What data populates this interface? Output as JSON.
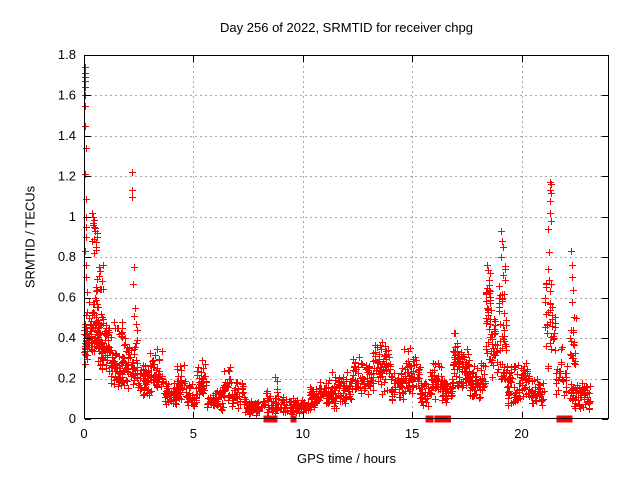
{
  "chart_data": {
    "type": "scatter",
    "title": "Day 256 of 2022, SRMTID for receiver chpg",
    "xlabel": "GPS time / hours",
    "ylabel": "SRMTID / TECUs",
    "xlim": [
      0,
      24
    ],
    "ylim": [
      0,
      1.8
    ],
    "xticks": [
      0,
      5,
      10,
      15,
      20
    ],
    "yticks": [
      0,
      0.2,
      0.4,
      0.6,
      0.8,
      1,
      1.2,
      1.4,
      1.6,
      1.8
    ],
    "grid": true,
    "legend_position": "none",
    "marker": "plus",
    "marker_color": "#ff0000",
    "background_color": "#ffffff",
    "axis_color": "#000000",
    "grid_color": "#a8a8a8",
    "seed": 1337,
    "bands": [
      [
        0.0,
        0.18,
        0.25,
        0.58,
        0.45,
        30
      ],
      [
        0.05,
        0.35,
        0.3,
        0.5,
        0.4,
        22
      ],
      [
        0.2,
        0.7,
        0.3,
        0.68,
        0.45,
        55
      ],
      [
        0.35,
        0.6,
        0.8,
        1.02,
        0.5,
        9
      ],
      [
        0.5,
        0.9,
        0.55,
        0.78,
        0.4,
        13
      ],
      [
        0.6,
        1.25,
        0.22,
        0.52,
        0.45,
        80
      ],
      [
        1.2,
        1.8,
        0.15,
        0.35,
        0.45,
        55
      ],
      [
        1.35,
        1.75,
        0.38,
        0.52,
        0.5,
        12
      ],
      [
        1.8,
        2.45,
        0.14,
        0.44,
        0.4,
        55
      ],
      [
        2.45,
        2.95,
        0.1,
        0.3,
        0.4,
        42
      ],
      [
        2.95,
        3.6,
        0.1,
        0.35,
        0.4,
        52
      ],
      [
        3.6,
        4.25,
        0.06,
        0.2,
        0.4,
        48
      ],
      [
        4.25,
        4.7,
        0.08,
        0.28,
        0.4,
        34
      ],
      [
        4.7,
        5.15,
        0.05,
        0.18,
        0.4,
        32
      ],
      [
        5.15,
        5.6,
        0.08,
        0.3,
        0.4,
        34
      ],
      [
        5.6,
        6.35,
        0.04,
        0.15,
        0.4,
        50
      ],
      [
        6.35,
        6.75,
        0.08,
        0.28,
        0.45,
        30
      ],
      [
        6.75,
        7.35,
        0.05,
        0.2,
        0.4,
        40
      ],
      [
        7.35,
        8.25,
        0.02,
        0.11,
        0.4,
        50
      ],
      [
        8.25,
        9.0,
        0.02,
        0.17,
        0.35,
        40
      ],
      [
        9.0,
        9.6,
        0.02,
        0.12,
        0.4,
        30
      ],
      [
        9.6,
        10.25,
        0.02,
        0.1,
        0.45,
        42
      ],
      [
        10.25,
        10.95,
        0.04,
        0.2,
        0.45,
        48
      ],
      [
        10.95,
        11.6,
        0.05,
        0.24,
        0.4,
        45
      ],
      [
        11.6,
        12.2,
        0.06,
        0.26,
        0.45,
        48
      ],
      [
        12.2,
        13.15,
        0.1,
        0.32,
        0.45,
        60
      ],
      [
        13.15,
        14.0,
        0.12,
        0.4,
        0.45,
        65
      ],
      [
        14.0,
        14.6,
        0.08,
        0.28,
        0.4,
        45
      ],
      [
        14.6,
        15.35,
        0.12,
        0.37,
        0.45,
        55
      ],
      [
        15.35,
        15.8,
        0.05,
        0.22,
        0.4,
        30
      ],
      [
        15.8,
        16.35,
        0.08,
        0.33,
        0.45,
        40
      ],
      [
        16.35,
        16.85,
        0.07,
        0.22,
        0.4,
        35
      ],
      [
        16.85,
        17.25,
        0.15,
        0.47,
        0.4,
        40
      ],
      [
        17.25,
        17.65,
        0.13,
        0.35,
        0.45,
        40
      ],
      [
        17.65,
        18.1,
        0.08,
        0.28,
        0.4,
        35
      ],
      [
        18.1,
        18.35,
        0.12,
        0.3,
        0.4,
        18
      ],
      [
        18.35,
        18.62,
        0.25,
        0.8,
        0.55,
        40
      ],
      [
        18.62,
        18.95,
        0.15,
        0.55,
        0.45,
        25
      ],
      [
        18.95,
        19.3,
        0.3,
        0.8,
        0.35,
        30
      ],
      [
        18.95,
        19.35,
        0.15,
        0.35,
        0.4,
        15
      ],
      [
        19.3,
        19.95,
        0.06,
        0.28,
        0.35,
        45
      ],
      [
        19.95,
        20.35,
        0.1,
        0.32,
        0.45,
        30
      ],
      [
        20.35,
        21.05,
        0.05,
        0.22,
        0.4,
        40
      ],
      [
        21.05,
        21.55,
        0.2,
        0.95,
        0.35,
        42
      ],
      [
        21.55,
        22.1,
        0.1,
        0.36,
        0.4,
        26
      ],
      [
        22.15,
        22.5,
        0.2,
        0.6,
        0.4,
        18
      ],
      [
        22.2,
        23.15,
        0.04,
        0.19,
        0.45,
        60
      ]
    ],
    "highlight_points": [
      [
        0.03,
        1.74
      ],
      [
        0.05,
        1.71
      ],
      [
        0.04,
        1.69
      ],
      [
        0.06,
        1.67
      ],
      [
        0.05,
        1.64
      ],
      [
        0.04,
        1.6
      ],
      [
        0.06,
        1.55
      ],
      [
        0.05,
        1.45
      ],
      [
        0.07,
        1.34
      ],
      [
        0.05,
        1.21
      ],
      [
        0.07,
        1.09
      ],
      [
        0.09,
        1.0
      ],
      [
        0.07,
        0.95
      ],
      [
        0.1,
        0.9
      ],
      [
        0.06,
        0.83
      ],
      [
        0.11,
        0.76
      ],
      [
        0.08,
        0.7
      ],
      [
        0.12,
        0.63
      ],
      [
        0.38,
        1.02
      ],
      [
        0.43,
        1.0
      ],
      [
        0.4,
        0.97
      ],
      [
        0.46,
        0.95
      ],
      [
        0.5,
        0.93
      ],
      [
        0.36,
        0.88
      ],
      [
        0.53,
        0.85
      ],
      [
        0.44,
        0.82
      ],
      [
        2.18,
        1.22
      ],
      [
        2.21,
        1.13
      ],
      [
        2.19,
        1.1
      ],
      [
        2.28,
        0.75
      ],
      [
        2.24,
        0.67
      ],
      [
        2.31,
        0.55
      ],
      [
        2.29,
        0.51
      ],
      [
        2.36,
        0.47
      ],
      [
        2.41,
        0.44
      ],
      [
        8.75,
        0.21
      ],
      [
        8.8,
        0.19
      ],
      [
        19.05,
        0.93
      ],
      [
        19.1,
        0.88
      ],
      [
        19.16,
        0.85
      ],
      [
        19.08,
        0.8
      ],
      [
        21.28,
        1.17
      ],
      [
        21.33,
        1.16
      ],
      [
        21.3,
        1.13
      ],
      [
        21.36,
        1.12
      ],
      [
        21.31,
        1.08
      ],
      [
        21.29,
        1.02
      ],
      [
        21.34,
        0.98
      ],
      [
        22.28,
        0.83
      ],
      [
        22.33,
        0.76
      ],
      [
        22.29,
        0.7
      ],
      [
        22.35,
        0.64
      ],
      [
        22.31,
        0.58
      ]
    ],
    "zero_runs": [
      [
        8.3,
        8.48
      ],
      [
        8.58,
        8.76
      ],
      [
        9.52,
        9.62
      ],
      [
        15.7,
        15.88
      ],
      [
        16.12,
        16.34
      ],
      [
        16.42,
        16.68
      ],
      [
        21.7,
        21.96
      ],
      [
        22.1,
        22.24
      ]
    ]
  }
}
